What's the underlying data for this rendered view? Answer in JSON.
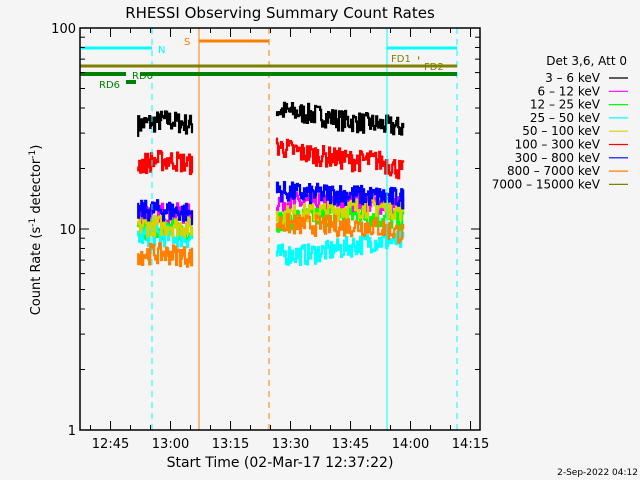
{
  "chart_data": {
    "type": "line",
    "title": "RHESSI Observing Summary Count Rates",
    "xlabel": "Start Time (02-Mar-17 12:37:22)",
    "ylabel": "Count Rate (s⁻¹ detector⁻¹)",
    "ylabel_main": "Count Rate (s",
    "ylabel_sup1": "-1",
    "ylabel_mid": " detector",
    "ylabel_sup2": "-1",
    "ylabel_end": ")",
    "yscale": "log",
    "ylim": [
      1,
      100
    ],
    "x_units": "minutes after 12:37:22",
    "xlim": [
      0,
      100
    ],
    "x_ticks": [
      {
        "label": "12:45",
        "t": 7.63
      },
      {
        "label": "13:00",
        "t": 22.63
      },
      {
        "label": "13:15",
        "t": 37.63
      },
      {
        "label": "13:30",
        "t": 52.63
      },
      {
        "label": "13:45",
        "t": 67.63
      },
      {
        "label": "14:00",
        "t": 82.63
      },
      {
        "label": "14:15",
        "t": 97.63
      }
    ],
    "y_ticks": [
      {
        "label": "100",
        "v": 100
      },
      {
        "label": "10",
        "v": 10
      },
      {
        "label": "1",
        "v": 1
      }
    ],
    "legend_title": "Det 3,6, Att 0",
    "legend_position": "right",
    "noise_frac": 0.12,
    "series": [
      {
        "name": "3 - 6 keV",
        "color": "#000000",
        "segments": [
          {
            "t": [
              14.3,
              28
            ],
            "values": [
              33,
              34,
              35,
              34,
              33
            ]
          },
          {
            "t": [
              49,
              80.8
            ],
            "values": [
              39,
              38,
              37,
              35,
              34,
              33,
              32
            ]
          }
        ]
      },
      {
        "name": "6 - 12 keV",
        "color": "#ff00ff",
        "segments": [
          {
            "t": [
              14.3,
              28
            ],
            "values": [
              12,
              12.3,
              12,
              12
            ]
          },
          {
            "t": [
              49,
              80.8
            ],
            "values": [
              13.8,
              13.5,
              13.8,
              13.5,
              13
            ]
          }
        ]
      },
      {
        "name": "12 - 25 keV",
        "color": "#00ff00",
        "segments": [
          {
            "t": [
              14.3,
              28
            ],
            "values": [
              9.8,
              10,
              10,
              9.8
            ]
          },
          {
            "t": [
              49,
              80.8
            ],
            "values": [
              11,
              11.5,
              11.8,
              11.5,
              11
            ]
          }
        ]
      },
      {
        "name": "25 - 50 keV",
        "color": "#00ffff",
        "segments": [
          {
            "t": [
              14.3,
              28
            ],
            "values": [
              9.2,
              9.3,
              9.2,
              9
            ]
          },
          {
            "t": [
              49,
              80.8
            ],
            "values": [
              7.5,
              7.5,
              8,
              8.7,
              8.7
            ]
          }
        ]
      },
      {
        "name": "50 - 100 keV",
        "color": "#d4d400",
        "segments": [
          {
            "t": [
              14.3,
              28
            ],
            "values": [
              10.4,
              10.5,
              10.4,
              10.2
            ]
          },
          {
            "t": [
              49,
              80.8
            ],
            "values": [
              11.6,
              12,
              12.5,
              13,
              12.5
            ]
          }
        ]
      },
      {
        "name": "100 - 300 keV",
        "color": "#ff0000",
        "segments": [
          {
            "t": [
              14.3,
              28
            ],
            "values": [
              21,
              22,
              22,
              21
            ]
          },
          {
            "t": [
              49,
              80.8
            ],
            "values": [
              26,
              24,
              23,
              22,
              22,
              19.5
            ]
          }
        ]
      },
      {
        "name": "300 - 800 keV",
        "color": "#0000ff",
        "segments": [
          {
            "t": [
              14.3,
              28
            ],
            "values": [
              12.3,
              12.5,
              12.3,
              12
            ]
          },
          {
            "t": [
              49,
              80.8
            ],
            "values": [
              15.5,
              15,
              15,
              14.6,
              14.3
            ]
          }
        ]
      },
      {
        "name": "800 - 7000 keV",
        "color": "#ff8000",
        "segments": [
          {
            "t": [
              14.3,
              28
            ],
            "values": [
              7.5,
              7.6,
              7.5,
              7.3
            ]
          },
          {
            "t": [
              49,
              80.8
            ],
            "values": [
              10.7,
              10.5,
              10.4,
              10.4,
              9.5
            ]
          }
        ]
      },
      {
        "name": "7000 - 15000 keV",
        "color": "#808000",
        "segments": []
      }
    ],
    "vertical_lines": [
      {
        "t": 0,
        "color": "#00ffff",
        "style": "solid"
      },
      {
        "t": 18,
        "color": "#00ffff",
        "style": "dashed"
      },
      {
        "t": 29.75,
        "color": "#ff8000",
        "style": "solid"
      },
      {
        "t": 47.25,
        "color": "#ff8000",
        "style": "dashed"
      },
      {
        "t": 76.75,
        "color": "#00ffff",
        "style": "solid"
      },
      {
        "t": 94.25,
        "color": "#00ffff",
        "style": "dashed"
      }
    ],
    "flag_bars": [
      {
        "label": "N",
        "color": "#00ffff",
        "ranges": [
          [
            0,
            18
          ],
          [
            76.75,
            94.25
          ]
        ]
      },
      {
        "label": "S",
        "color": "#ff8000",
        "ranges": [
          [
            29.75,
            47.25
          ]
        ]
      },
      {
        "label": "FD1",
        "color": "#808000",
        "ranges": [
          [
            84.5,
            84.8
          ]
        ]
      },
      {
        "label": "FD2",
        "color": "#808000",
        "ranges": [
          [
            0,
            94.25
          ]
        ]
      },
      {
        "label": "RD0",
        "color": "#008000",
        "ranges": [
          [
            0,
            11.5
          ],
          [
            15,
            94.25
          ]
        ]
      },
      {
        "label": "RD6",
        "color": "#008000",
        "ranges": [
          [
            11.5,
            14
          ]
        ]
      }
    ]
  },
  "footer_date": "2-Sep-2022 04:12"
}
